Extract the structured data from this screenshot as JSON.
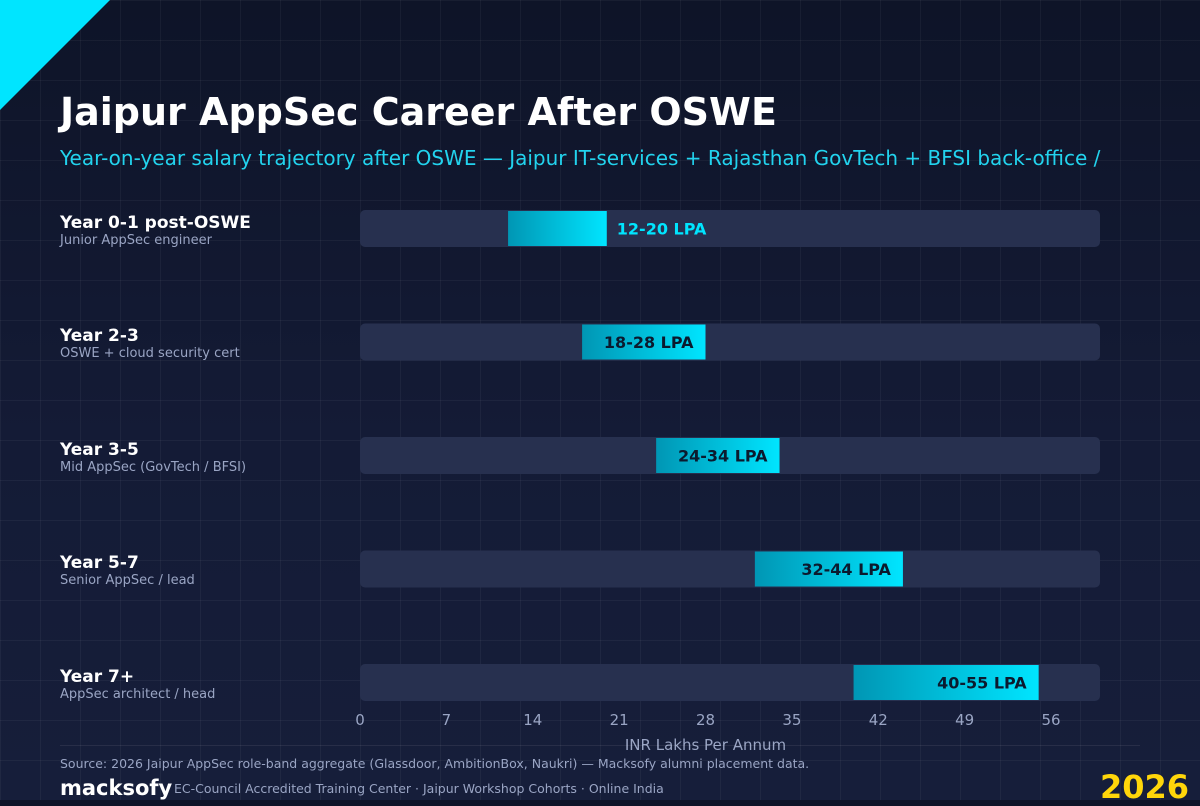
{
  "title": "Jaipur AppSec Career After OSWE",
  "subtitle": "Year-on-year salary trajectory after OSWE — Jaipur IT-services + Rajasthan GovTech + BFSI back-office /",
  "colors": {
    "background": "#0e1428",
    "track": "#27304f",
    "bar_start": "#0096b4",
    "bar_end": "#00e5ff",
    "accent": "#00e5ff",
    "year_badge": "#ffd60a"
  },
  "chart_data": {
    "type": "bar",
    "orientation": "horizontal-range",
    "title": "Jaipur AppSec Career After OSWE",
    "xlabel": "INR Lakhs Per Annum",
    "xlim": [
      0,
      60
    ],
    "x_ticks": [
      0,
      7,
      14,
      21,
      28,
      35,
      42,
      49,
      56
    ],
    "grid": true,
    "categories": [
      {
        "label": "Year 0-1 post-OSWE",
        "sub": "Junior AppSec engineer"
      },
      {
        "label": "Year 2-3",
        "sub": "OSWE + cloud security cert"
      },
      {
        "label": "Year 3-5",
        "sub": "Mid AppSec (GovTech / BFSI)"
      },
      {
        "label": "Year 5-7",
        "sub": "Senior AppSec / lead"
      },
      {
        "label": "Year 7+",
        "sub": "AppSec architect / head"
      }
    ],
    "ranges": [
      {
        "low": 12,
        "high": 20,
        "label": "12-20 LPA"
      },
      {
        "low": 18,
        "high": 28,
        "label": "18-28 LPA"
      },
      {
        "low": 24,
        "high": 34,
        "label": "24-34 LPA"
      },
      {
        "low": 32,
        "high": 44,
        "label": "32-44 LPA"
      },
      {
        "low": 40,
        "high": 55,
        "label": "40-55 LPA"
      }
    ]
  },
  "footer": {
    "source": "Source: 2026 Jaipur AppSec role-band aggregate (Glassdoor, AmbitionBox, Naukri) — Macksofy alumni placement data.",
    "brand": "macksofy",
    "tagline": "EC-Council Accredited Training Center · Jaipur Workshop Cohorts · Online India",
    "year": "2026"
  }
}
